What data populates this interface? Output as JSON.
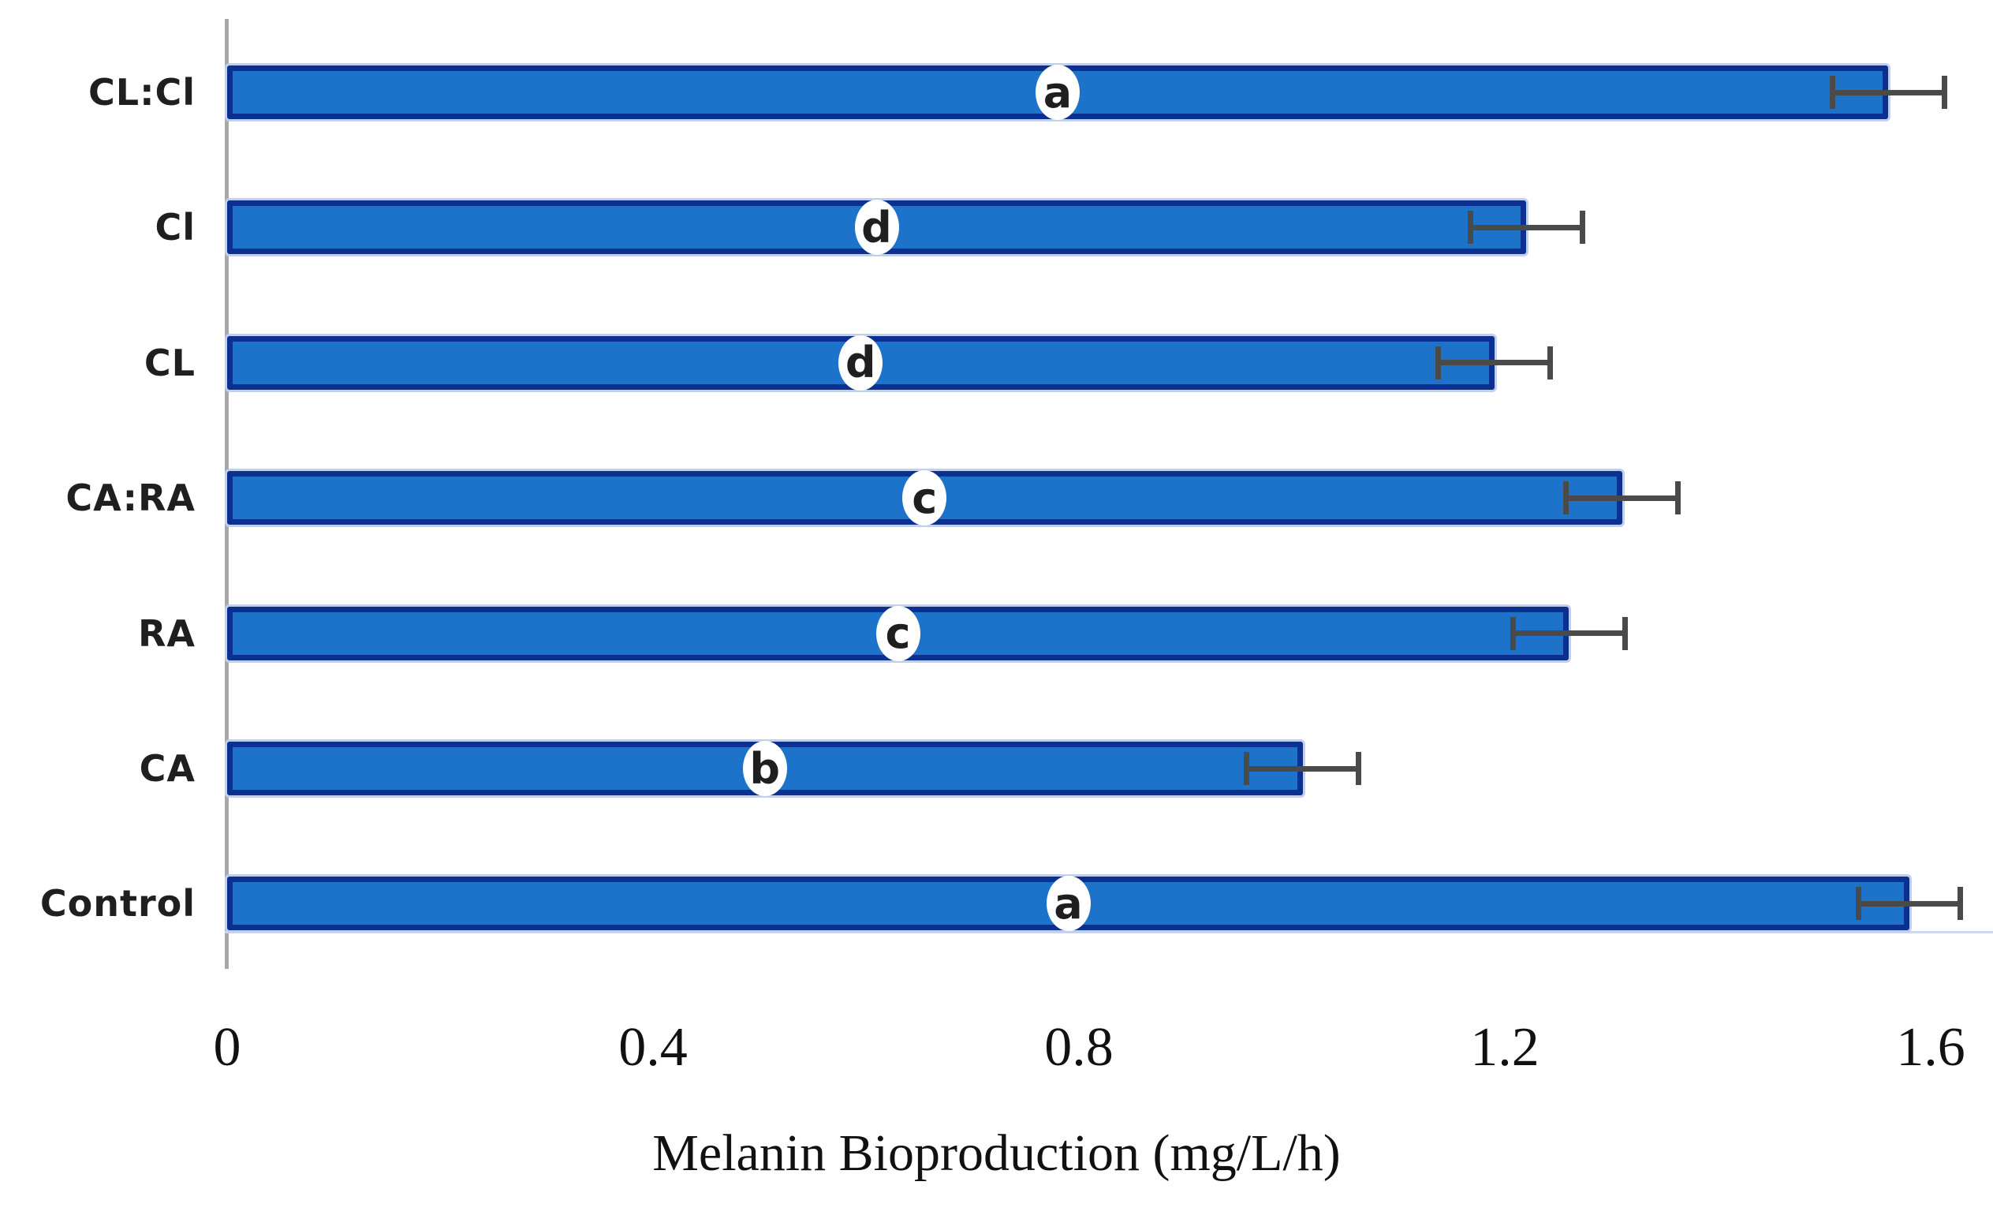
{
  "chart_data": {
    "type": "bar",
    "orientation": "horizontal",
    "title": "",
    "xlabel": "Melanin Bioproduction (mg/L/h)",
    "ylabel": "",
    "xlim": [
      0,
      1.6
    ],
    "grid": false,
    "legend": false,
    "bar_color": "#1d73c9",
    "bar_border_color": "#0b3090",
    "error_bar_color": "#4a4a4a",
    "axis_line_color": "#a8a8a8",
    "x_ticks": [
      {
        "label": "0",
        "value": 0
      },
      {
        "label": "0.4",
        "value": 0.4
      },
      {
        "label": "0.8",
        "value": 0.8
      },
      {
        "label": "1.2",
        "value": 1.2
      },
      {
        "label": "1.6",
        "value": 1.6
      }
    ],
    "series": [
      {
        "name": "Melanin bioproduction",
        "points_top_to_bottom": [
          {
            "category": "CL:Cl",
            "value": 1.56,
            "error": 0.05,
            "letter": "a"
          },
          {
            "category": "Cl",
            "value": 1.22,
            "error": 0.05,
            "letter": "d"
          },
          {
            "category": "CL",
            "value": 1.19,
            "error": 0.05,
            "letter": "d"
          },
          {
            "category": "CA:RA",
            "value": 1.31,
            "error": 0.05,
            "letter": "c"
          },
          {
            "category": "RA",
            "value": 1.26,
            "error": 0.05,
            "letter": "c"
          },
          {
            "category": "CA",
            "value": 1.01,
            "error": 0.05,
            "letter": "b"
          },
          {
            "category": "Control",
            "value": 1.58,
            "error": 0.045,
            "letter": "a"
          }
        ]
      }
    ]
  }
}
